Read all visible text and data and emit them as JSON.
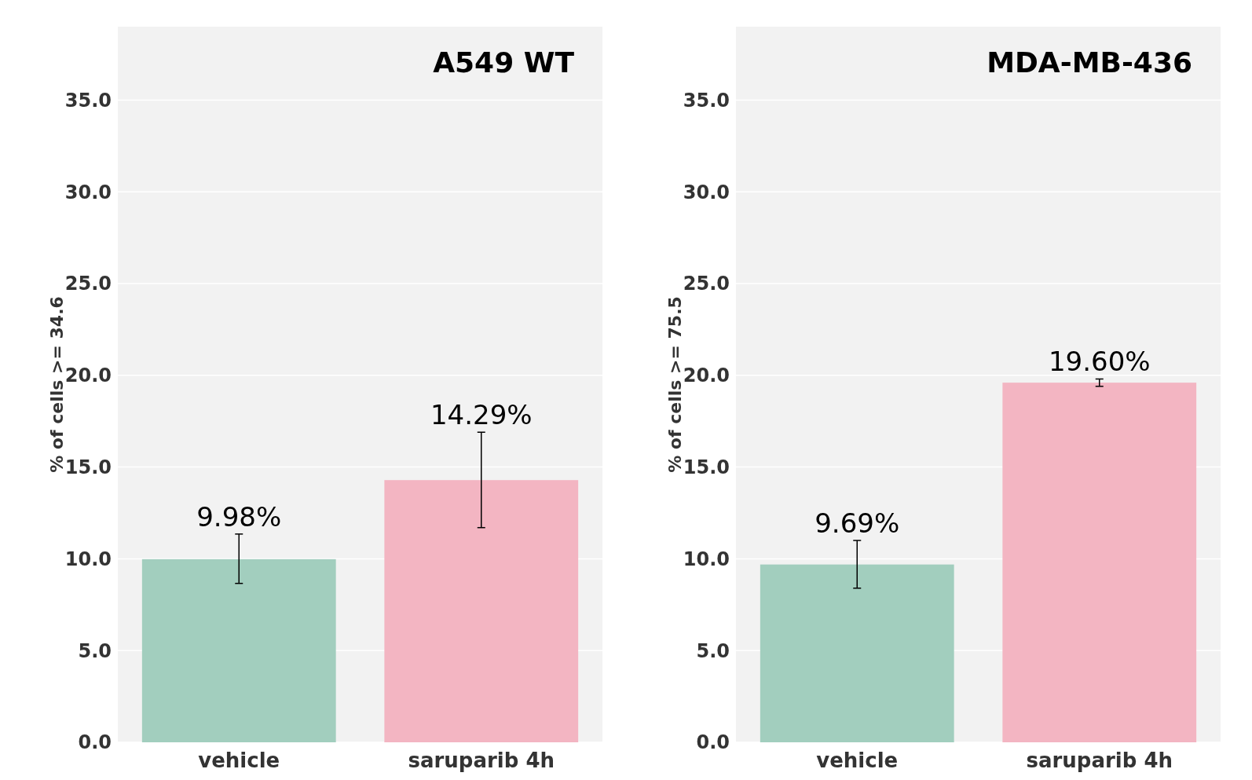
{
  "chart_data": [
    {
      "type": "bar",
      "title": "A549 WT",
      "ylabel": "% of cells >= 34.6",
      "categories": [
        "vehicle",
        "saruparib 4h"
      ],
      "values": [
        9.98,
        14.29
      ],
      "colors": [
        "#a2cebe",
        "#f3b5c2"
      ],
      "errors": [
        [
          8.66,
          11.35
        ],
        [
          11.7,
          16.9
        ]
      ],
      "value_labels": [
        "9.98%",
        "14.29%"
      ],
      "ylim": [
        0,
        39
      ],
      "yticks": [
        {
          "value": 0,
          "label": "0.0"
        },
        {
          "value": 5,
          "label": "5.0"
        },
        {
          "value": 10,
          "label": "10.0"
        },
        {
          "value": 15,
          "label": "15.0"
        },
        {
          "value": 20,
          "label": "20.0"
        },
        {
          "value": 25,
          "label": "25.0"
        },
        {
          "value": 30,
          "label": "30.0"
        },
        {
          "value": 35,
          "label": "35.0"
        }
      ],
      "grid": "y"
    },
    {
      "type": "bar",
      "title": "MDA-MB-436",
      "ylabel": "% of cells >= 75.5",
      "categories": [
        "vehicle",
        "saruparib 4h"
      ],
      "values": [
        9.69,
        19.6
      ],
      "colors": [
        "#a2cebe",
        "#f3b5c2"
      ],
      "errors": [
        [
          8.4,
          11.0
        ],
        [
          19.4,
          19.8
        ]
      ],
      "value_labels": [
        "9.69%",
        "19.60%"
      ],
      "ylim": [
        0,
        39
      ],
      "yticks": [
        {
          "value": 0,
          "label": "0.0"
        },
        {
          "value": 5,
          "label": "5.0"
        },
        {
          "value": 10,
          "label": "10.0"
        },
        {
          "value": 15,
          "label": "15.0"
        },
        {
          "value": 20,
          "label": "20.0"
        },
        {
          "value": 25,
          "label": "25.0"
        },
        {
          "value": 30,
          "label": "30.0"
        },
        {
          "value": 35,
          "label": "35.0"
        }
      ],
      "grid": "y"
    }
  ]
}
